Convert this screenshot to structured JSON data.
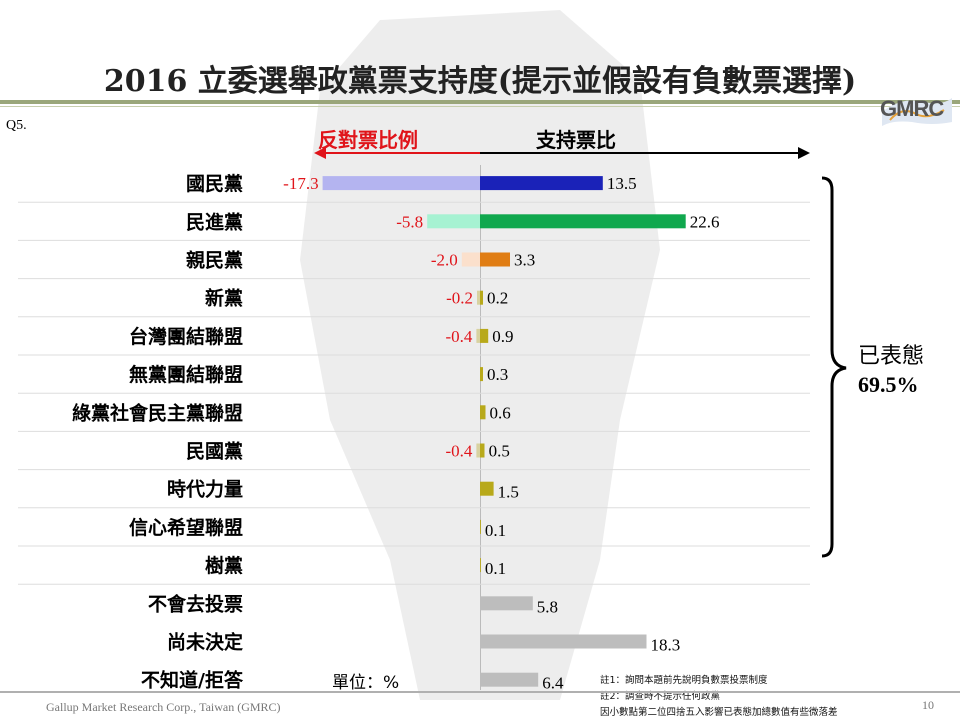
{
  "title": "2016 立委選舉政黨票支持度(提示並假設有負數票選擇)",
  "logo": "GMRC",
  "question": "Q5.",
  "headers": {
    "negative": "反對票比例",
    "positive": "支持票比"
  },
  "group": {
    "label": "已表態",
    "value": "69.5%"
  },
  "unit": "單位：%",
  "notes": [
    "註1：詢問本題前先說明負數票投票制度",
    "註2：調查時不提示任何政黨",
    "因小數點第二位四捨五入影響已表態加總數值有些微落差"
  ],
  "footer": "Gallup Market Research Corp., Taiwan (GMRC)",
  "page_number": "10",
  "colors": {
    "neg_text": "#e0141a",
    "grey_bar": "#bdbdbd",
    "olive_bar": "#b8a91a"
  },
  "chart_data": {
    "type": "bar",
    "orientation": "horizontal-diverging",
    "categories": [
      "國民黨",
      "民進黨",
      "親民黨",
      "新黨",
      "台灣團結聯盟",
      "無黨團結聯盟",
      "綠黨社會民主黨聯盟",
      "民國黨",
      "時代力量",
      "信心希望聯盟",
      "樹黨",
      "不會去投票",
      "尚未決定",
      "不知道/拒答"
    ],
    "series": [
      {
        "name": "反對票比例",
        "values": [
          -17.3,
          -5.8,
          -2.0,
          -0.2,
          -0.4,
          null,
          null,
          -0.4,
          null,
          null,
          null,
          null,
          null,
          null
        ],
        "labels": [
          "-17.3",
          "-5.8",
          "-2.0",
          "-0.2",
          "-0.4",
          "",
          "",
          "-0.4",
          "",
          "",
          "",
          "",
          "",
          ""
        ],
        "colors": [
          "#b4b4f0",
          "#a6f2d2",
          "#fbe0cc",
          "#d8d2a0",
          "#d8d2a0",
          "#d8d2a0",
          "#d8d2a0",
          "#d8d2a0",
          "#d8d2a0",
          "#d8d2a0",
          "#d8d2a0",
          "#d8d2a0",
          "#d8d2a0",
          "#d8d2a0"
        ]
      },
      {
        "name": "支持票比",
        "values": [
          13.5,
          22.6,
          3.3,
          0.2,
          0.9,
          0.3,
          0.6,
          0.5,
          1.5,
          0.1,
          0.1,
          5.8,
          18.3,
          6.4
        ],
        "labels": [
          "13.5",
          "22.6",
          "3.3",
          "0.2",
          "0.9",
          "0.3",
          "0.6",
          "0.5",
          "1.5",
          "0.1",
          "0.1",
          "5.8",
          "18.3",
          "6.4"
        ],
        "colors": [
          "#1a22b8",
          "#10a84e",
          "#e07d14",
          "#b8a91a",
          "#b8a91a",
          "#b8a91a",
          "#b8a91a",
          "#b8a91a",
          "#b8a91a",
          "#b8a91a",
          "#b8a91a",
          "#bdbdbd",
          "#bdbdbd",
          "#bdbdbd"
        ]
      }
    ],
    "grid": "horizontal separators",
    "legend": "none"
  }
}
